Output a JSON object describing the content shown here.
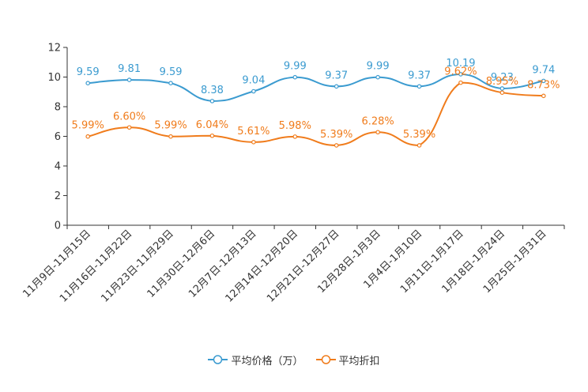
{
  "chart_data": {
    "type": "line",
    "title": "",
    "xlabel": "",
    "ylabel": "",
    "categories": [
      "11月9日-11月15日",
      "11月16日-11月22日",
      "11月23日-11月29日",
      "11月30日-12月6日",
      "12月7日-12月13日",
      "12月14日-12月20日",
      "12月21日-12月27日",
      "12月28日-1月3日",
      "1月4日-1月10日",
      "1月11日-1月17日",
      "1月18日-1月24日",
      "1月25日-1月31日"
    ],
    "series": [
      {
        "name": "平均价格（万）",
        "color": "#3b9bd0",
        "values": [
          9.59,
          9.81,
          9.59,
          8.38,
          9.04,
          9.99,
          9.37,
          9.99,
          9.37,
          10.19,
          9.23,
          9.74
        ],
        "labels": [
          "9.59",
          "9.81",
          "9.59",
          "8.38",
          "9.04",
          "9.99",
          "9.37",
          "9.99",
          "9.37",
          "10.19",
          "9.23",
          "9.74"
        ]
      },
      {
        "name": "平均折扣",
        "color": "#f07c1c",
        "values": [
          5.99,
          6.6,
          5.99,
          6.04,
          5.61,
          5.98,
          5.39,
          6.28,
          5.39,
          9.62,
          8.95,
          8.73
        ],
        "labels": [
          "5.99%",
          "6.60%",
          "5.99%",
          "6.04%",
          "5.61%",
          "5.98%",
          "5.39%",
          "6.28%",
          "5.39%",
          "9.62%",
          "8.95%",
          "8.73%"
        ]
      }
    ],
    "ylim": [
      0,
      12
    ],
    "yticks": [
      0,
      2,
      4,
      6,
      8,
      10,
      12
    ],
    "grid": false,
    "smooth": true,
    "legend": "bottom-center",
    "axis_color": "#333333",
    "tick_label_color": "#333333"
  }
}
